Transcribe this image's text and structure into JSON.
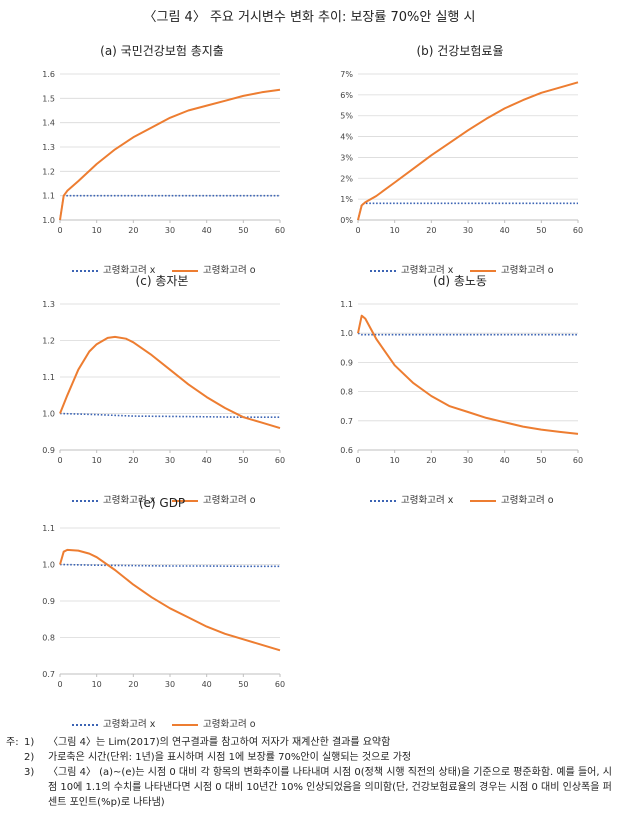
{
  "figure_title": "〈그림 4〉 주요 거시변수 변화 추이: 보장률 70%안 실행 시",
  "legend": {
    "dotted": "고령화고려 x",
    "solid": "고령화고려 o"
  },
  "colors": {
    "dotted": "#3c64b4",
    "solid": "#ed7d31",
    "grid": "#d9d9d9",
    "axis": "#bfbfbf"
  },
  "chart_data": [
    {
      "id": "a",
      "type": "line",
      "title": "(a) 국민건강보험 총지출",
      "xlim": [
        0,
        60
      ],
      "ylim": [
        1.0,
        1.6
      ],
      "xticks": [
        0,
        10,
        20,
        30,
        40,
        50,
        60
      ],
      "yticks": [
        1.0,
        1.1,
        1.2,
        1.3,
        1.4,
        1.5,
        1.6
      ],
      "ytick_labels": [
        "1.0",
        "1.1",
        "1.2",
        "1.3",
        "1.4",
        "1.5",
        "1.6"
      ],
      "series": [
        {
          "name": "고령화고려 x",
          "style": "dotted",
          "x": [
            0,
            1,
            2,
            10,
            20,
            30,
            40,
            50,
            60
          ],
          "y": [
            1.0,
            1.1,
            1.1,
            1.1,
            1.1,
            1.1,
            1.1,
            1.1,
            1.1
          ]
        },
        {
          "name": "고령화고려 o",
          "style": "solid",
          "x": [
            0,
            1,
            2,
            5,
            10,
            15,
            20,
            25,
            30,
            35,
            40,
            45,
            50,
            55,
            60
          ],
          "y": [
            1.0,
            1.1,
            1.12,
            1.16,
            1.23,
            1.29,
            1.34,
            1.38,
            1.42,
            1.45,
            1.47,
            1.49,
            1.51,
            1.525,
            1.535
          ]
        }
      ]
    },
    {
      "id": "b",
      "type": "line",
      "title": "(b) 건강보험료율",
      "xlim": [
        0,
        60
      ],
      "ylim": [
        0,
        7
      ],
      "xticks": [
        0,
        10,
        20,
        30,
        40,
        50,
        60
      ],
      "yticks": [
        0,
        1,
        2,
        3,
        4,
        5,
        6,
        7
      ],
      "ytick_labels": [
        "0%",
        "1%",
        "2%",
        "3%",
        "4%",
        "5%",
        "6%",
        "7%"
      ],
      "series": [
        {
          "name": "고령화고려 x",
          "style": "dotted",
          "x": [
            0,
            1,
            2,
            10,
            20,
            30,
            40,
            50,
            60
          ],
          "y": [
            0,
            0.75,
            0.8,
            0.8,
            0.8,
            0.8,
            0.8,
            0.8,
            0.8
          ]
        },
        {
          "name": "고령화고려 o",
          "style": "solid",
          "x": [
            0,
            1,
            2,
            5,
            10,
            15,
            20,
            25,
            30,
            35,
            40,
            45,
            50,
            55,
            60
          ],
          "y": [
            0,
            0.7,
            0.85,
            1.15,
            1.8,
            2.45,
            3.1,
            3.7,
            4.3,
            4.85,
            5.35,
            5.75,
            6.1,
            6.35,
            6.6
          ]
        }
      ]
    },
    {
      "id": "c",
      "type": "line",
      "title": "(c) 총자본",
      "xlim": [
        0,
        60
      ],
      "ylim": [
        0.9,
        1.3
      ],
      "xticks": [
        0,
        10,
        20,
        30,
        40,
        50,
        60
      ],
      "yticks": [
        0.9,
        1.0,
        1.1,
        1.2,
        1.3
      ],
      "ytick_labels": [
        "0.9",
        "1.0",
        "1.1",
        "1.2",
        "1.3"
      ],
      "series": [
        {
          "name": "고령화고려 x",
          "style": "dotted",
          "x": [
            0,
            10,
            20,
            30,
            40,
            50,
            60
          ],
          "y": [
            1.0,
            0.997,
            0.993,
            0.992,
            0.991,
            0.99,
            0.99
          ]
        },
        {
          "name": "고령화고려 o",
          "style": "solid",
          "x": [
            0,
            2,
            5,
            8,
            10,
            13,
            15,
            18,
            20,
            25,
            30,
            35,
            40,
            45,
            50,
            55,
            60
          ],
          "y": [
            1.0,
            1.05,
            1.12,
            1.17,
            1.19,
            1.207,
            1.21,
            1.205,
            1.195,
            1.16,
            1.12,
            1.08,
            1.045,
            1.015,
            0.99,
            0.975,
            0.96
          ]
        }
      ]
    },
    {
      "id": "d",
      "type": "line",
      "title": "(d) 총노동",
      "xlim": [
        0,
        60
      ],
      "ylim": [
        0.6,
        1.1
      ],
      "xticks": [
        0,
        10,
        20,
        30,
        40,
        50,
        60
      ],
      "yticks": [
        0.6,
        0.7,
        0.8,
        0.9,
        1.0,
        1.1
      ],
      "ytick_labels": [
        "0.6",
        "0.7",
        "0.8",
        "0.9",
        "1.0",
        "1.1"
      ],
      "series": [
        {
          "name": "고령화고려 x",
          "style": "dotted",
          "x": [
            0,
            1,
            2,
            10,
            20,
            30,
            40,
            50,
            60
          ],
          "y": [
            1.0,
            0.995,
            0.995,
            0.995,
            0.995,
            0.995,
            0.995,
            0.995,
            0.995
          ]
        },
        {
          "name": "고령화고려 o",
          "style": "solid",
          "x": [
            0,
            1,
            2,
            5,
            10,
            15,
            20,
            25,
            30,
            35,
            40,
            45,
            50,
            55,
            60
          ],
          "y": [
            1.0,
            1.06,
            1.05,
            0.98,
            0.89,
            0.83,
            0.785,
            0.75,
            0.73,
            0.71,
            0.695,
            0.68,
            0.67,
            0.662,
            0.655
          ]
        }
      ]
    },
    {
      "id": "e",
      "type": "line",
      "title": "(e) GDP",
      "xlim": [
        0,
        60
      ],
      "ylim": [
        0.7,
        1.1
      ],
      "xticks": [
        0,
        10,
        20,
        30,
        40,
        50,
        60
      ],
      "yticks": [
        0.7,
        0.8,
        0.9,
        1.0,
        1.1
      ],
      "ytick_labels": [
        "0.7",
        "0.8",
        "0.9",
        "1.0",
        "1.1"
      ],
      "series": [
        {
          "name": "고령화고려 x",
          "style": "dotted",
          "x": [
            0,
            10,
            20,
            30,
            40,
            50,
            60
          ],
          "y": [
            1.0,
            0.998,
            0.997,
            0.996,
            0.996,
            0.995,
            0.995
          ]
        },
        {
          "name": "고령화고려 o",
          "style": "solid",
          "x": [
            0,
            1,
            2,
            5,
            8,
            10,
            15,
            20,
            25,
            30,
            35,
            40,
            45,
            50,
            55,
            60
          ],
          "y": [
            1.0,
            1.035,
            1.04,
            1.038,
            1.03,
            1.02,
            0.985,
            0.945,
            0.91,
            0.88,
            0.855,
            0.83,
            0.81,
            0.795,
            0.78,
            0.765
          ]
        }
      ]
    }
  ],
  "notes": {
    "prefix": "주:",
    "items": [
      {
        "num": "1)",
        "text": "〈그림 4〉는 Lim(2017)의 연구결과를 참고하여 저자가 재계산한 결과를 요약함"
      },
      {
        "num": "2)",
        "text": "가로축은 시간(단위: 1년)을 표시하며 시점 1에 보장률 70%안이 실행되는 것으로 가정"
      },
      {
        "num": "3)",
        "text": "〈그림 4〉 (a)~(e)는 시점 0 대비 각 항목의 변화추이를 나타내며 시점 0(정책 시행 직전의 상태)을 기준으로 평준화함. 예를 들어, 시점 10에 1.1의 수치를 나타낸다면 시점 0 대비 10년간 10% 인상되었음을 의미함(단, 건강보험료율의 경우는 시점 0 대비 인상폭을 퍼센트 포인트(%p)로 나타냄)"
      }
    ]
  }
}
